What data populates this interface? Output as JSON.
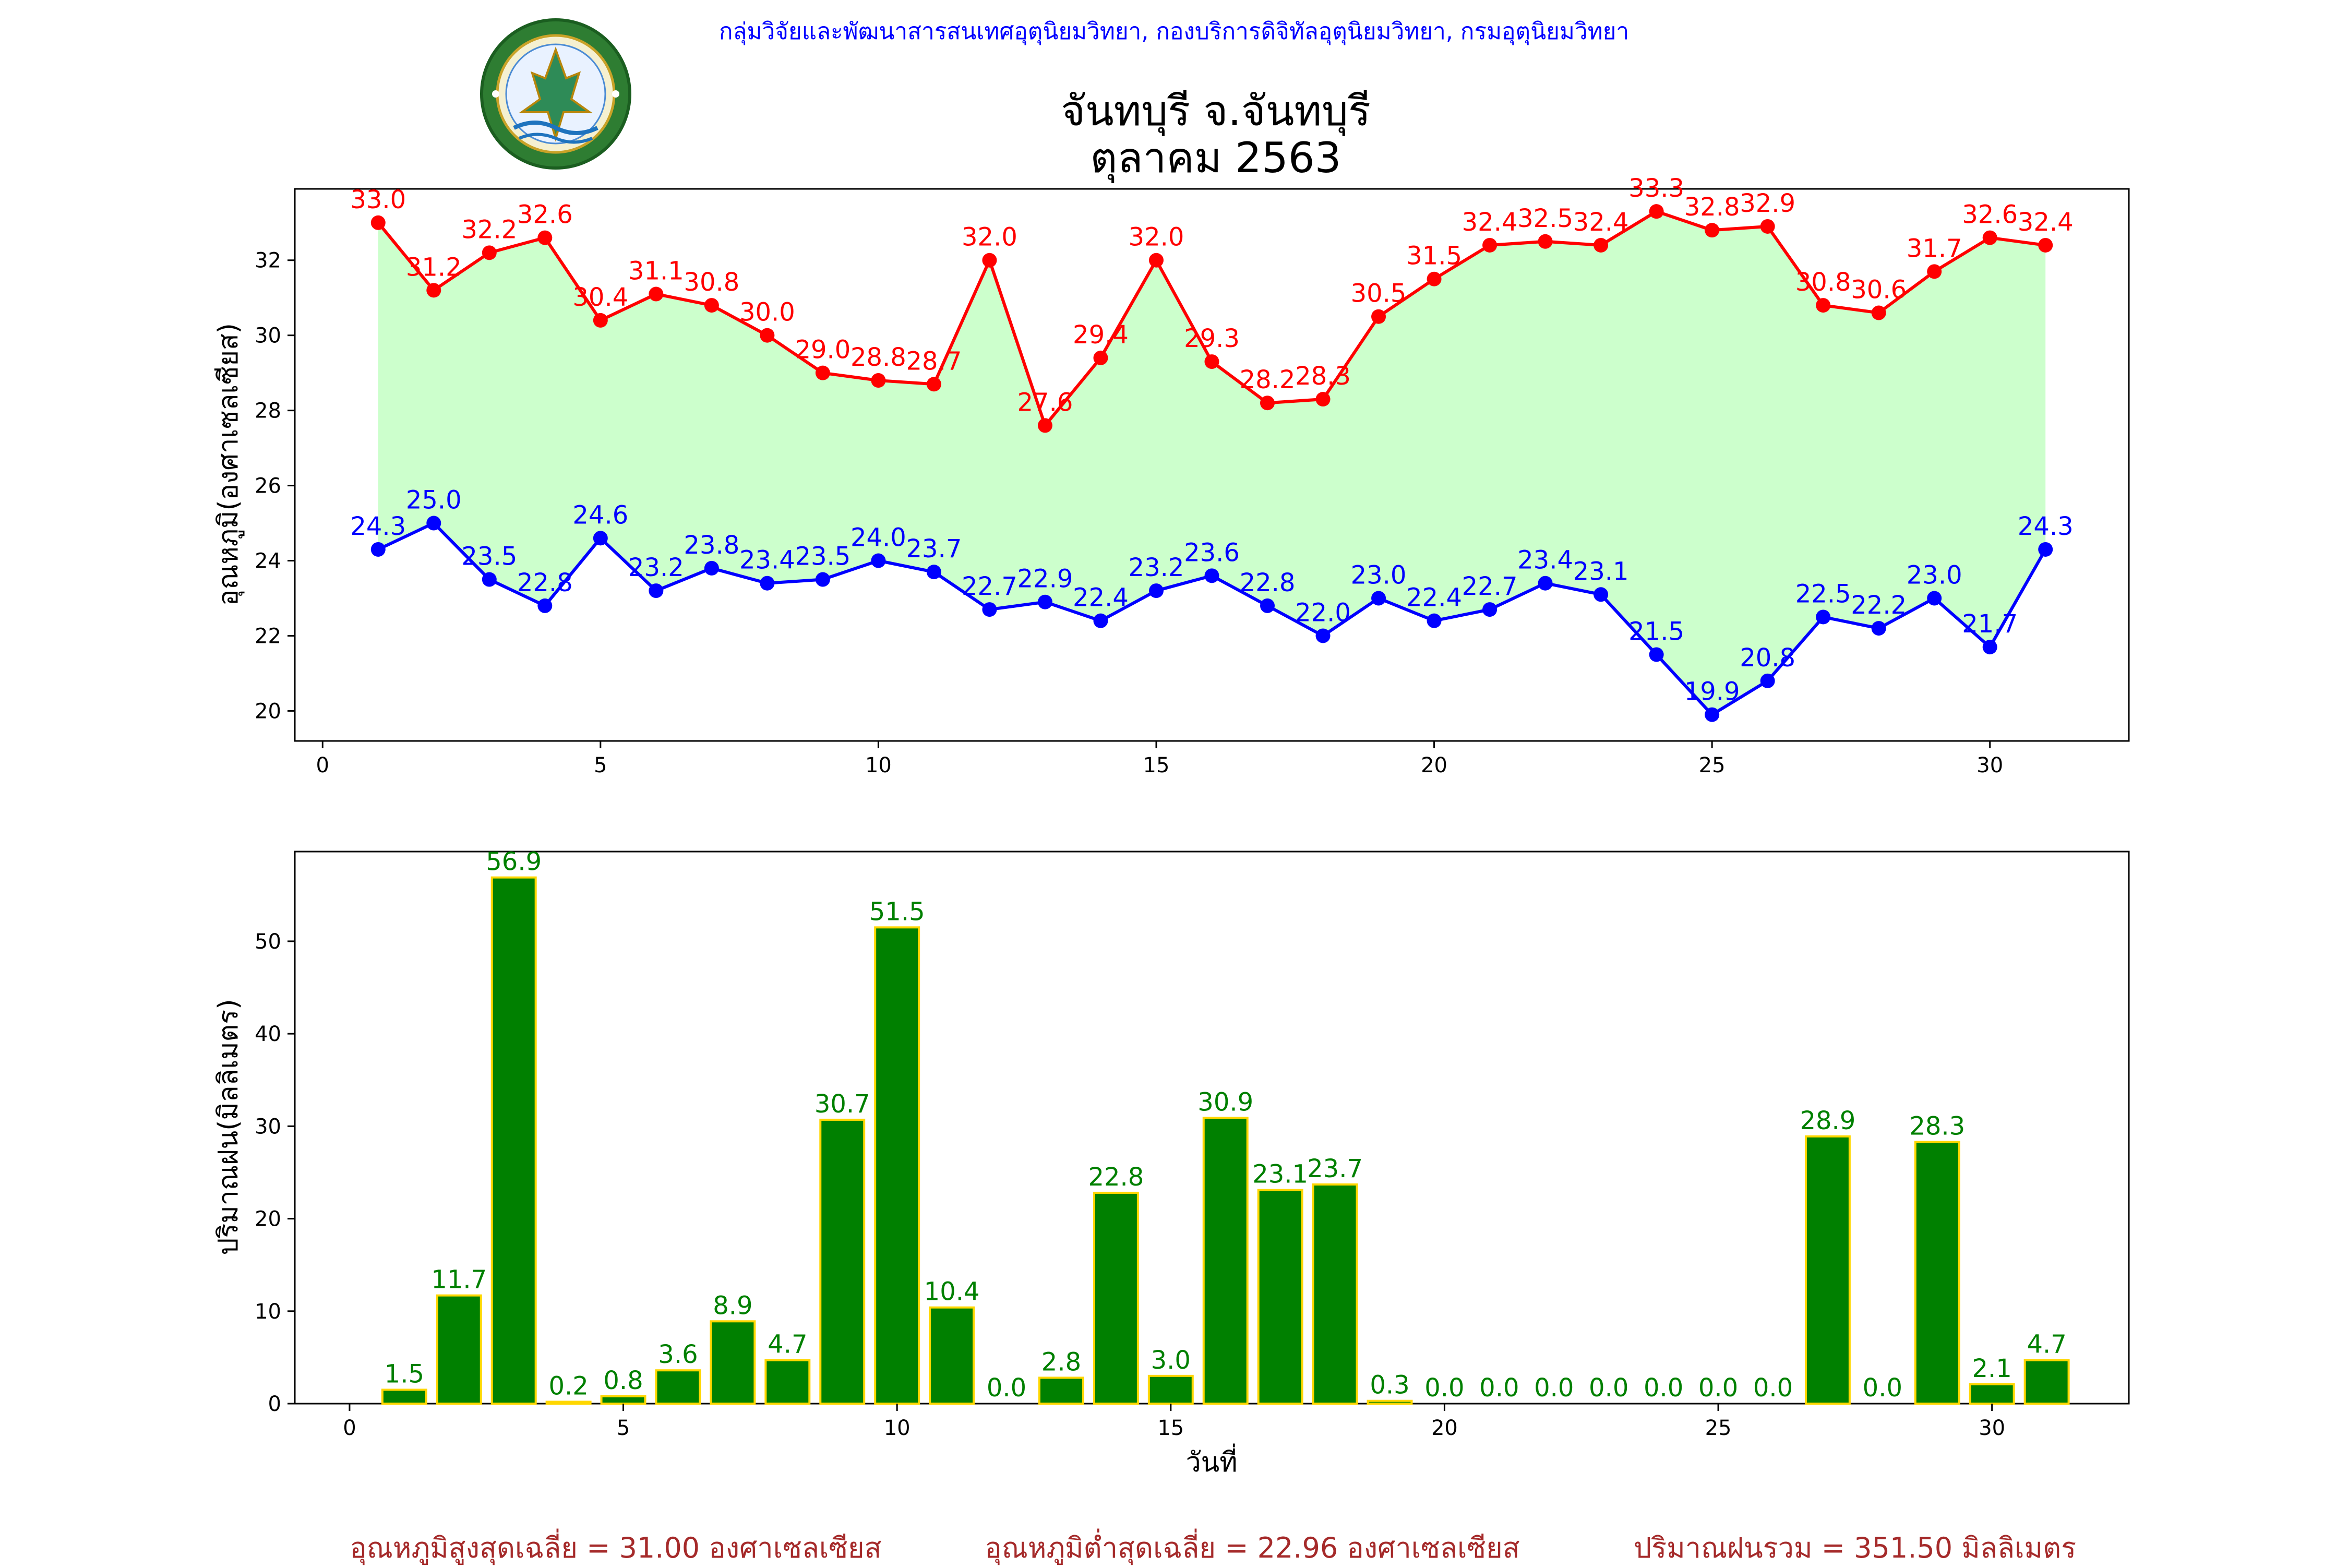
{
  "header": {
    "org_line": "กลุ่มวิจัยและพัฒนาสารสนเทศอุตุนิยมวิทยา, กองบริการดิจิทัลอุตุนิยมวิทยา, กรมอุตุนิยมวิทยา",
    "station": "จันทบุรี จ.จันทบุรี",
    "period": "ตุลาคม 2563",
    "logo_text": "กรมอุตุนิยมวิทยา METEOROLOGICAL DEPARTMENT"
  },
  "colors": {
    "max_line": "#ff0000",
    "min_line": "#0000ff",
    "band_fill": "#ccffcc",
    "bar_fill": "#008000",
    "bar_edge": "#ffd700",
    "bar_label": "#008000",
    "header_text": "#0000ff",
    "footer_text": "#a52a2a"
  },
  "chart_data": [
    {
      "type": "line",
      "ylabel": "อุณหภูมิ(องศาเซลเซียส)",
      "xlim": [
        -0.5,
        32.5
      ],
      "ylim": [
        19.2,
        33.9
      ],
      "xticks": [
        0,
        5,
        10,
        15,
        20,
        25,
        30
      ],
      "yticks": [
        20,
        22,
        24,
        26,
        28,
        30,
        32
      ],
      "grid": false,
      "x": [
        1,
        2,
        3,
        4,
        5,
        6,
        7,
        8,
        9,
        10,
        11,
        12,
        13,
        14,
        15,
        16,
        17,
        18,
        19,
        20,
        21,
        22,
        23,
        24,
        25,
        26,
        27,
        28,
        29,
        30,
        31
      ],
      "series": [
        {
          "key": "max",
          "values": [
            33.0,
            31.2,
            32.2,
            32.6,
            30.4,
            31.1,
            30.8,
            30.0,
            29.0,
            28.8,
            28.7,
            32.0,
            27.6,
            29.4,
            32.0,
            29.3,
            28.2,
            28.3,
            30.5,
            31.5,
            32.4,
            32.5,
            32.4,
            33.3,
            32.8,
            32.9,
            30.8,
            30.6,
            31.7,
            32.6,
            32.4
          ]
        },
        {
          "key": "min",
          "values": [
            24.3,
            25.0,
            23.5,
            22.8,
            24.6,
            23.2,
            23.8,
            23.4,
            23.5,
            24.0,
            23.7,
            22.7,
            22.9,
            22.4,
            23.2,
            23.6,
            22.8,
            22.0,
            23.0,
            22.4,
            22.7,
            23.4,
            23.1,
            21.5,
            19.9,
            20.8,
            22.5,
            22.2,
            23.0,
            21.7,
            24.3
          ]
        }
      ]
    },
    {
      "type": "bar",
      "xlabel": "วันที่",
      "ylabel": "ปริมาณฝน(มิลลิเมตร)",
      "xlim": [
        -1,
        32.5
      ],
      "ylim": [
        0,
        59.7
      ],
      "xticks": [
        0,
        5,
        10,
        15,
        20,
        25,
        30
      ],
      "yticks": [
        0,
        10,
        20,
        30,
        40,
        50
      ],
      "grid": false,
      "x": [
        1,
        2,
        3,
        4,
        5,
        6,
        7,
        8,
        9,
        10,
        11,
        12,
        13,
        14,
        15,
        16,
        17,
        18,
        19,
        20,
        21,
        22,
        23,
        24,
        25,
        26,
        27,
        28,
        29,
        30,
        31
      ],
      "values": [
        1.5,
        11.7,
        56.9,
        0.2,
        0.8,
        3.6,
        8.9,
        4.7,
        30.7,
        51.5,
        10.4,
        0.0,
        2.8,
        22.8,
        3.0,
        30.9,
        23.1,
        23.7,
        0.3,
        0.0,
        0.0,
        0.0,
        0.0,
        0.0,
        0.0,
        0.0,
        28.9,
        0.0,
        28.3,
        2.1,
        4.7
      ]
    }
  ],
  "footer": {
    "avg_max": "อุณหภูมิสูงสุดเฉลี่ย = 31.00 องศาเซลเซียส",
    "avg_min": "อุณหภูมิต่ำสุดเฉลี่ย = 22.96 องศาเซลเซียส",
    "total_rain": "ปริมาณฝนรวม = 351.50 มิลลิเมตร"
  }
}
